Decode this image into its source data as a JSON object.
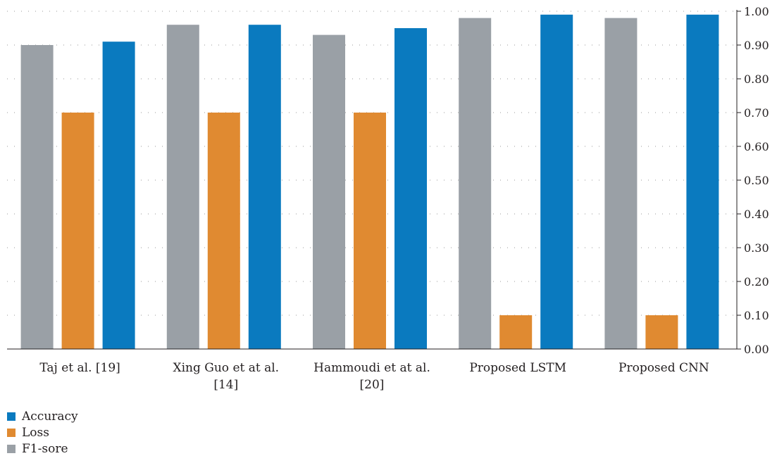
{
  "chart_data": {
    "type": "bar",
    "categories": [
      "Taj et al. [19]",
      "Xing Guo et at al. [14]",
      "Hammoudi et at al. [20]",
      "Proposed LSTM",
      "Proposed CNN"
    ],
    "category_lines": [
      [
        "Taj et al. [19]"
      ],
      [
        "Xing Guo et at al.",
        "[14]"
      ],
      [
        "Hammoudi et at al.",
        "[20]"
      ],
      [
        "Proposed LSTM"
      ],
      [
        "Proposed CNN"
      ]
    ],
    "series": [
      {
        "name": "F1-sore",
        "color": "#9aa0a6",
        "values": [
          0.9,
          0.96,
          0.93,
          0.98,
          0.98
        ]
      },
      {
        "name": "Loss",
        "color": "#e08a31",
        "values": [
          0.7,
          0.7,
          0.7,
          0.1,
          0.1
        ]
      },
      {
        "name": "Accuracy",
        "color": "#0a7abf",
        "values": [
          0.91,
          0.96,
          0.95,
          0.99,
          0.99
        ]
      }
    ],
    "ylim": [
      0,
      1.0
    ],
    "yticks": [
      "0.00",
      "0.10",
      "0.20",
      "0.30",
      "0.40",
      "0.50",
      "0.60",
      "0.70",
      "0.80",
      "0.90",
      "1.00"
    ],
    "y_axis_side": "right",
    "grid": "dotted horizontal",
    "legend_placement": "bottom-left",
    "xlabel": "",
    "ylabel": "",
    "title": ""
  },
  "legend": [
    {
      "label": "Accuracy",
      "color": "#0a7abf"
    },
    {
      "label": "Loss",
      "color": "#e08a31"
    },
    {
      "label": "F1-sore",
      "color": "#9aa0a6"
    }
  ]
}
